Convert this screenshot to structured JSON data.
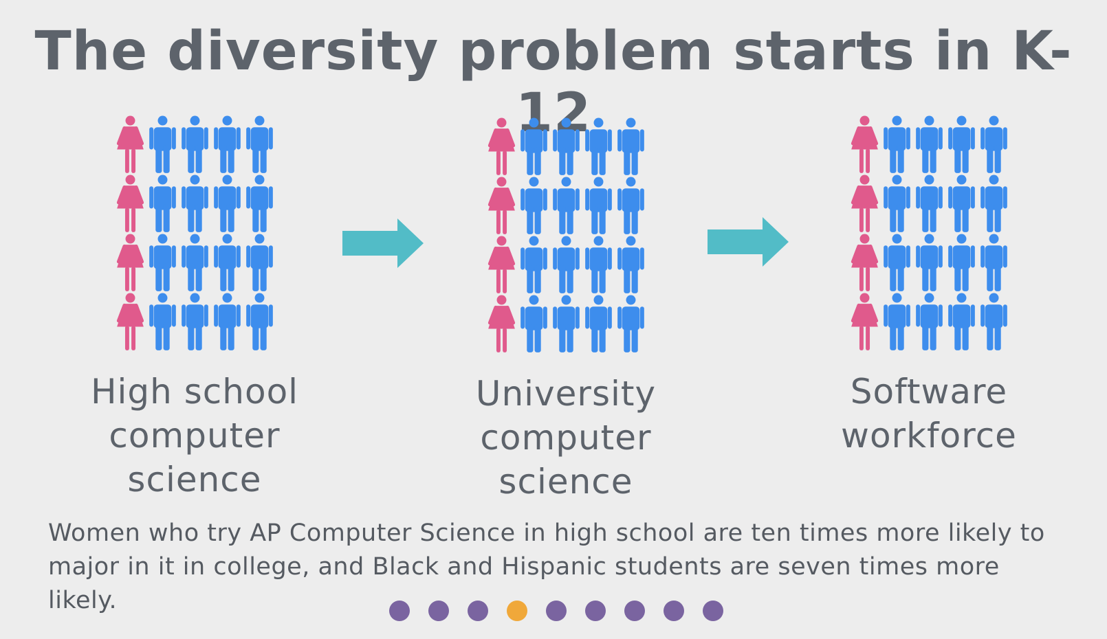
{
  "title": "The diversity problem starts in K-12",
  "colors": {
    "female": "#e05a8c",
    "male": "#3d8ded",
    "arrow": "#52bcc7",
    "dot": "#7a64a0",
    "dot_active": "#f0a83a"
  },
  "stages": [
    {
      "label_lines": [
        "High school",
        "computer",
        "science"
      ],
      "rows": 4,
      "cols": 5,
      "female_per_row": 1
    },
    {
      "label_lines": [
        "University",
        "computer",
        "science"
      ],
      "rows": 4,
      "cols": 5,
      "female_per_row": 1
    },
    {
      "label_lines": [
        "Software",
        "workforce"
      ],
      "rows": 4,
      "cols": 5,
      "female_per_row": 1
    }
  ],
  "body_text": "Women who try AP Computer Science in high school are ten times more likely to major in it in college, and Black and Hispanic students are seven times more likely.",
  "pagination": {
    "total": 9,
    "current": 4
  }
}
